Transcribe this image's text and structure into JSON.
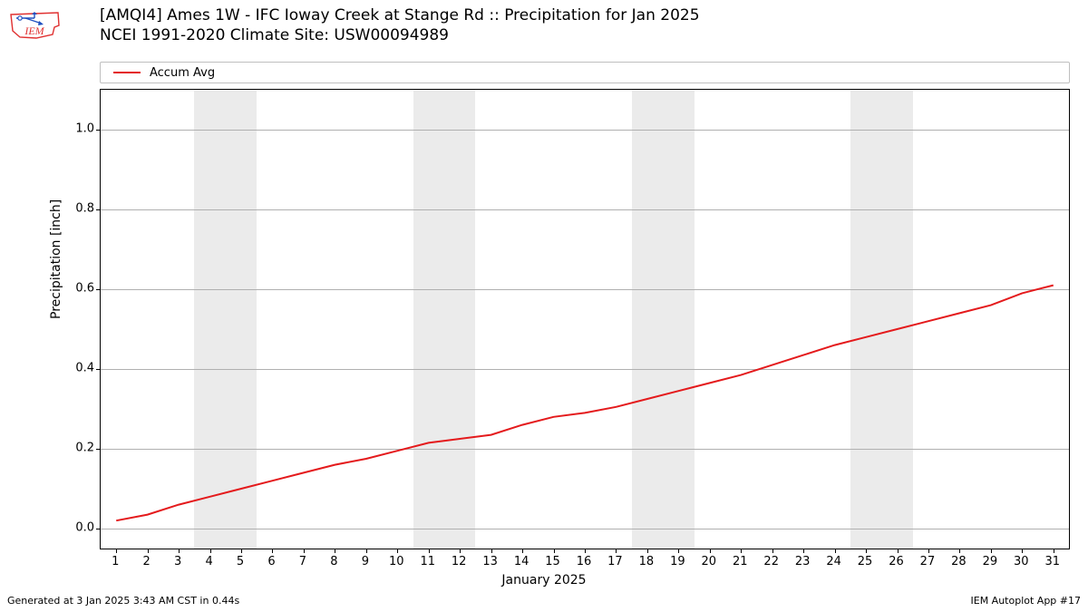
{
  "logo": {
    "text": "IEM",
    "outline_color": "#e03030",
    "accent_color": "#2050c0",
    "text_color": "#e03030"
  },
  "title": {
    "line1": "[AMQI4] Ames 1W - IFC Ioway Creek at Stange Rd :: Precipitation for Jan 2025",
    "line2": "NCEI 1991-2020 Climate Site: USW00094989",
    "fontsize": 17
  },
  "legend": {
    "items": [
      {
        "label": "Accum Avg",
        "color": "#e41a1c"
      }
    ]
  },
  "chart": {
    "type": "line",
    "background_color": "#ffffff",
    "weekend_band_color": "#ebebeb",
    "grid_color": "#b0b0b0",
    "xlim": [
      0.5,
      31.5
    ],
    "ylim": [
      -0.05,
      1.1
    ],
    "xticks": [
      1,
      2,
      3,
      4,
      5,
      6,
      7,
      8,
      9,
      10,
      11,
      12,
      13,
      14,
      15,
      16,
      17,
      18,
      19,
      20,
      21,
      22,
      23,
      24,
      25,
      26,
      27,
      28,
      29,
      30,
      31
    ],
    "yticks": [
      0.0,
      0.2,
      0.4,
      0.6,
      0.8,
      1.0
    ],
    "ytick_labels": [
      "0.0",
      "0.2",
      "0.4",
      "0.6",
      "0.8",
      "1.0"
    ],
    "xlabel": "January 2025",
    "ylabel": "Precipitation [inch]",
    "label_fontsize": 14,
    "tick_fontsize": 13,
    "weekend_bands": [
      [
        3.5,
        5.5
      ],
      [
        10.5,
        12.5
      ],
      [
        17.5,
        19.5
      ],
      [
        24.5,
        26.5
      ]
    ],
    "series": [
      {
        "name": "Accum Avg",
        "color": "#e41a1c",
        "line_width": 2,
        "x": [
          1,
          2,
          3,
          4,
          5,
          6,
          7,
          8,
          9,
          10,
          11,
          12,
          13,
          14,
          15,
          16,
          17,
          18,
          19,
          20,
          21,
          22,
          23,
          24,
          25,
          26,
          27,
          28,
          29,
          30,
          31
        ],
        "y": [
          0.02,
          0.035,
          0.06,
          0.08,
          0.1,
          0.12,
          0.14,
          0.16,
          0.175,
          0.195,
          0.215,
          0.225,
          0.235,
          0.26,
          0.28,
          0.29,
          0.305,
          0.325,
          0.345,
          0.365,
          0.385,
          0.41,
          0.435,
          0.46,
          0.48,
          0.5,
          0.52,
          0.54,
          0.56,
          0.59,
          0.61
        ]
      }
    ]
  },
  "footer": {
    "left": "Generated at 3 Jan 2025 3:43 AM CST in 0.44s",
    "right": "IEM Autoplot App #17"
  }
}
